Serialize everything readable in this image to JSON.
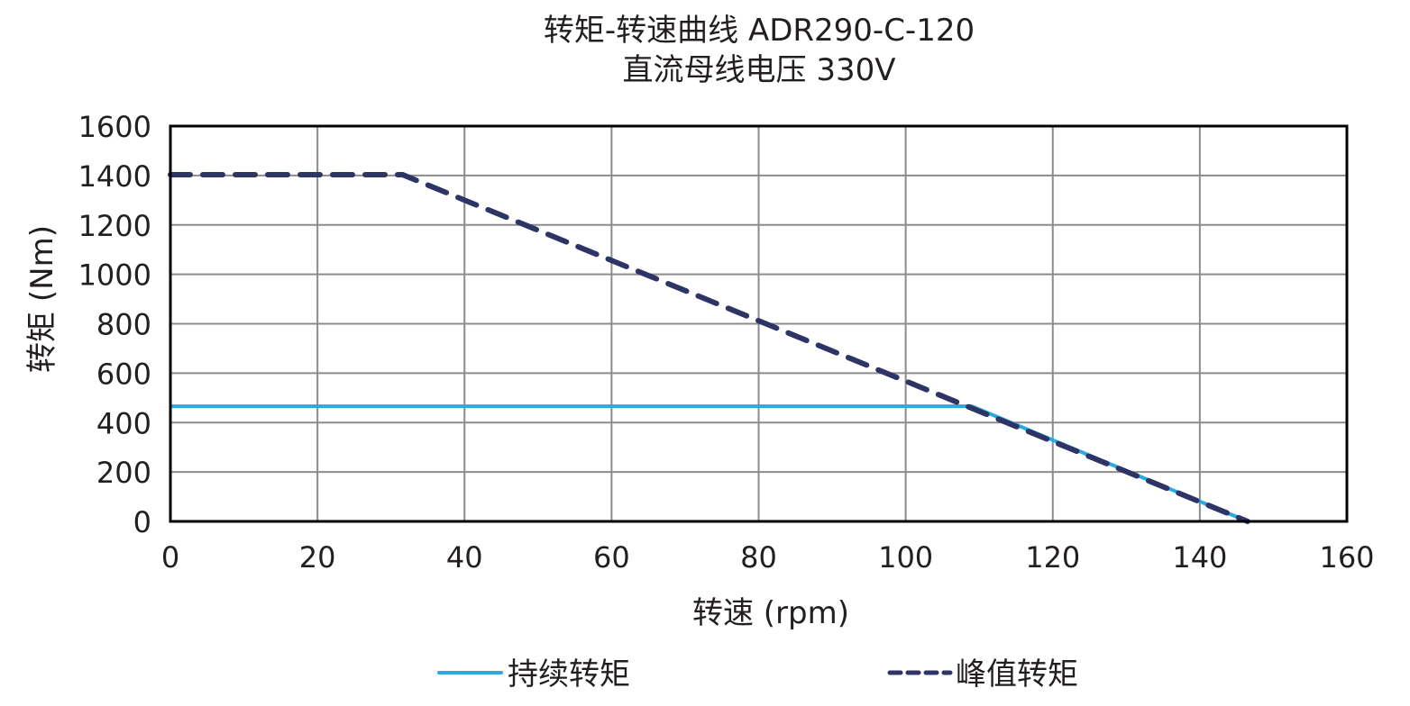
{
  "chart_data": {
    "type": "line",
    "title": "转矩-转速曲线 ADR290-C-120",
    "subtitle": "直流母线电压 330V",
    "xlabel": "转速 (rpm)",
    "ylabel": "转矩 (Nm)",
    "xlim": [
      0,
      160
    ],
    "ylim": [
      0,
      1600
    ],
    "xticks": [
      0,
      20,
      40,
      60,
      80,
      100,
      120,
      140,
      160
    ],
    "yticks": [
      0,
      200,
      400,
      600,
      800,
      1000,
      1200,
      1400,
      1600
    ],
    "grid": true,
    "legend_position": "bottom",
    "series": [
      {
        "name": "持续转矩",
        "style": "solid",
        "color": "#29abe2",
        "x": [
          0,
          109,
          146.5
        ],
        "y": [
          466,
          466,
          0
        ]
      },
      {
        "name": "峰值转矩",
        "style": "dashed",
        "color": "#2e3466",
        "x": [
          0,
          31.6,
          146.5
        ],
        "y": [
          1403,
          1403,
          0
        ]
      }
    ]
  },
  "labels": {
    "title": "转矩-转速曲线 ADR290-C-120",
    "subtitle": "直流母线电压 330V",
    "xlabel": "转速 (rpm)",
    "ylabel": "转矩 (Nm)",
    "legend_continuous": "持续转矩",
    "legend_peak": "峰值转矩"
  }
}
